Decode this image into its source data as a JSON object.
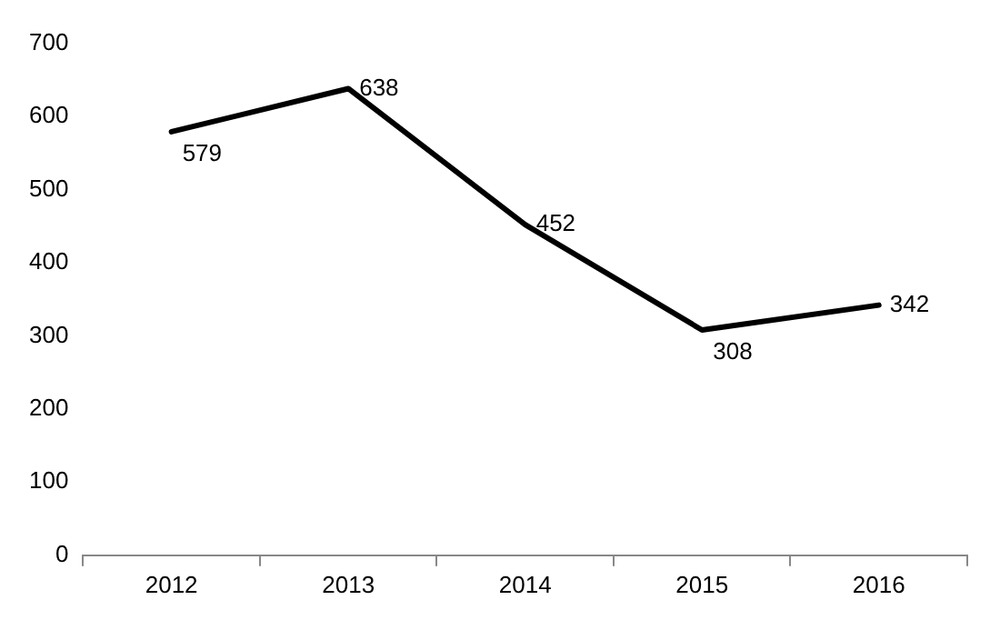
{
  "chart_data": {
    "type": "line",
    "categories": [
      "2012",
      "2013",
      "2014",
      "2015",
      "2016"
    ],
    "series": [
      {
        "color": "#000000",
        "values": [
          579,
          638,
          452,
          308,
          342
        ]
      }
    ],
    "ylim": [
      0,
      700
    ],
    "yticks": [
      0,
      100,
      200,
      300,
      400,
      500,
      600,
      700
    ],
    "grid": false,
    "legend": false,
    "marker": "none",
    "line_style": "solid",
    "data_labels": true
  }
}
